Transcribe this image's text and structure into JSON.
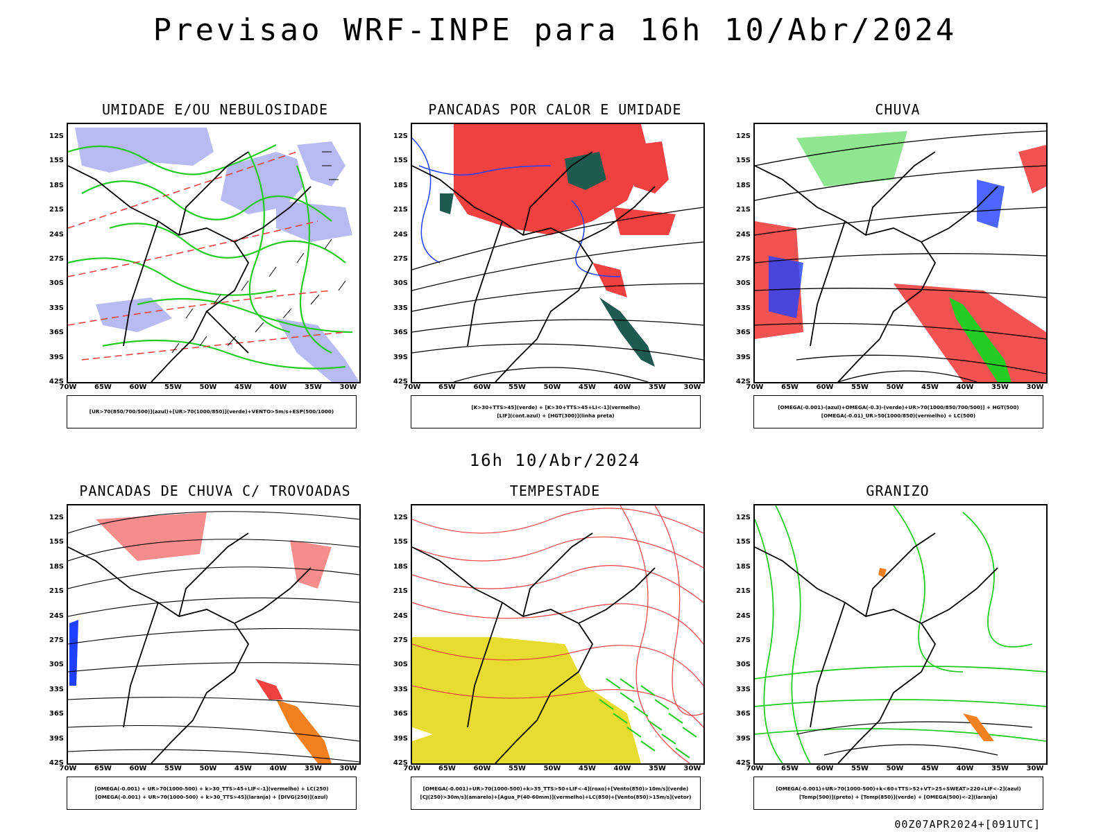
{
  "title": "Previsao WRF-INPE  para 16h 10/Abr/2024",
  "middle_date": "16h 10/Abr/2024",
  "footer": "00Z07APR2024+[091UTC]",
  "lat_labels": [
    "12S",
    "15S",
    "18S",
    "21S",
    "24S",
    "27S",
    "30S",
    "33S",
    "36S",
    "39S",
    "42S"
  ],
  "lon_labels": [
    "70W",
    "65W",
    "60W",
    "55W",
    "50W",
    "45W",
    "40W",
    "35W",
    "30W"
  ],
  "panels": [
    {
      "title": "UMIDADE E/OU NEBULOSIDADE",
      "legend": [
        "[UR>70(850/700/500)](azul)+[UR>70(1000/850)](verde)+VENTO>5m/s+ESP(500/1000)"
      ]
    },
    {
      "title": "PANCADAS POR CALOR E UMIDADE",
      "legend": [
        "[K>30+TTS>45](verde) + [K>30+TTS>45+LI<-1](vermelho)",
        "[LIF](cont.azul) + [HGT(300)](linha preta)"
      ]
    },
    {
      "title": "CHUVA",
      "legend": [
        "[OMEGA(-0.001)-(azul)+OMEGA(-0.3)-(verde)+UR>70(1000/850/700/500)] + HGT(500)",
        "[OMEGA(-0.01)_UR>50(1000/850)(vermelho) + LC(500)"
      ]
    },
    {
      "title": "PANCADAS DE CHUVA C/ TROVOADAS",
      "legend": [
        "[OMEGA(-0.001) + UR>70(1000-500) + k>30_TTS>45+LIF<-1](vermelho) + LC(250)",
        "[OMEGA(-0.001) + UR>70(1000-500) + k>30_TTS>45](laranja) + [DIVG(250)](azul)"
      ]
    },
    {
      "title": "TEMPESTADE",
      "legend": [
        "[OMEGA(-0.001)+UR>70(1000-500)+k>35_TTS>50+LIF<-4](roxo)+[Vento(850)>10m/s](verde)",
        "[CJ(250)>30m/s](amarelo)+[Agua_P(40-60mm)](vermelho)+LC(850)+[Vento(850)>15m/s](vetor)"
      ]
    },
    {
      "title": "GRANIZO",
      "legend": [
        "[OMEGA(-0.001)+UR>70(1000-500)+k<60+TTS>52+VT>25+SWEAT>220+LIF<-2](azul)",
        "[Temp(500)](preto) + [Temp(850)](verde) + [OMEGA(500)<-2](laranja)"
      ]
    }
  ],
  "colors": {
    "blue_shade": "#b0b4f0",
    "green": "#22cc22",
    "red": "#f04040",
    "dark_teal": "#1e5a50",
    "yellow": "#e8dc30",
    "orange": "#f08020",
    "blue": "#2040ff"
  }
}
